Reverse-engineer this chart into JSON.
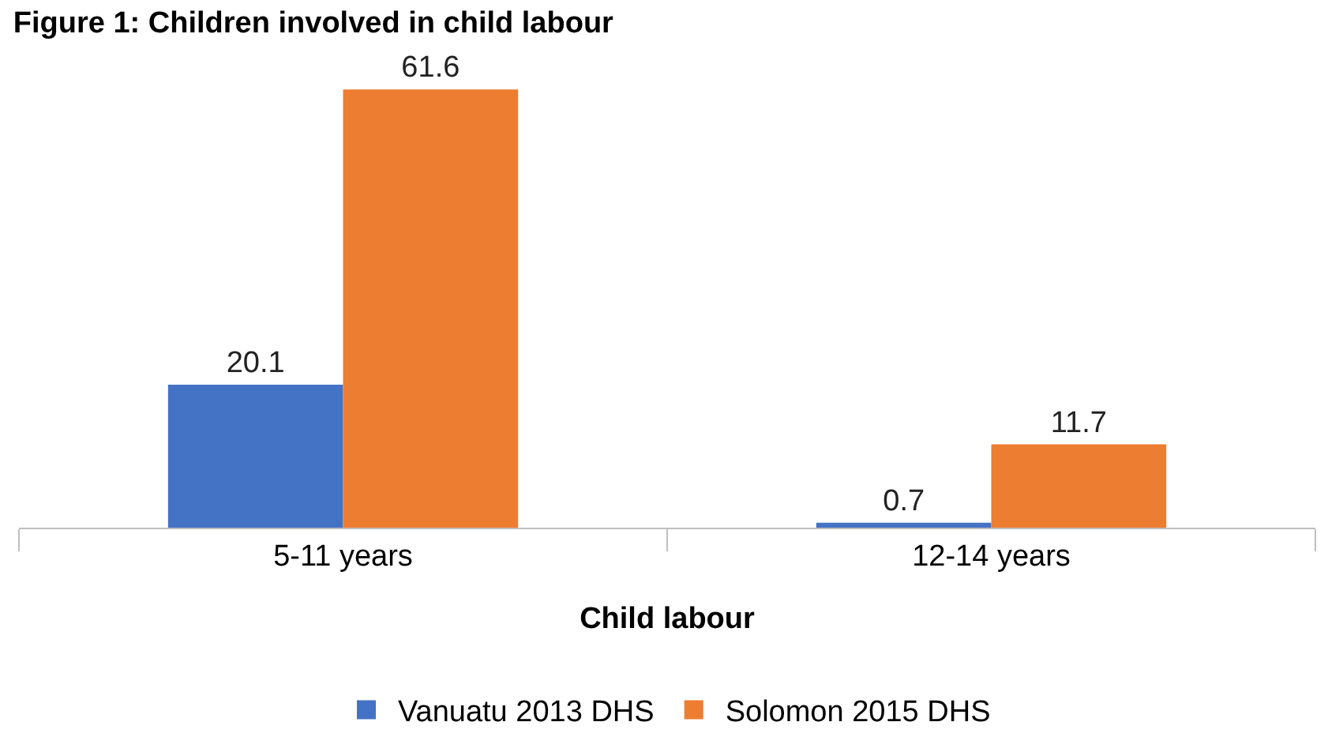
{
  "chart_data": {
    "type": "bar",
    "title": "Figure 1: Children involved in child labour",
    "xlabel": "Child labour",
    "categories": [
      "5-11 years",
      "12-14 years"
    ],
    "series": [
      {
        "name": "Vanuatu 2013 DHS",
        "color": "#4472c4",
        "values": [
          20.1,
          0.7
        ]
      },
      {
        "name": "Solomon 2015 DHS",
        "color": "#ed7d31",
        "values": [
          61.6,
          11.7
        ]
      }
    ],
    "data_labels": true,
    "legend": "bottom",
    "grid": false
  }
}
